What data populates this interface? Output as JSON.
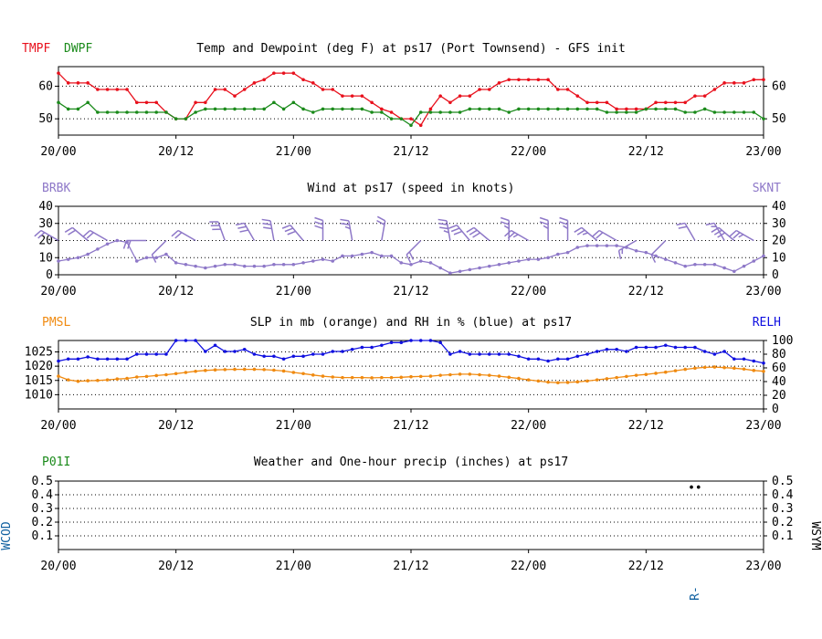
{
  "colors": {
    "temp": "#e8101c",
    "dew": "#1a8a1a",
    "wind": "#8e78c8",
    "slp": "#f08a10",
    "rh": "#1010e0",
    "precip_label": "#1a8a1a",
    "side_label": "#1060a0",
    "axis": "#000000"
  },
  "x_ticks": [
    "20/00",
    "20/12",
    "21/00",
    "21/12",
    "22/00",
    "22/12",
    "23/00"
  ],
  "chart_data": [
    {
      "id": "temp",
      "type": "line",
      "title": "Temp and Dewpoint (deg F) at ps17  (Port Townsend) - GFS init",
      "left_labels": [
        "TMPF",
        "DWPF"
      ],
      "ylim": [
        45,
        66
      ],
      "y_ticks": [
        50,
        60
      ],
      "right_ticks": [
        50,
        60
      ],
      "x_range": [
        0,
        72
      ],
      "series": [
        {
          "name": "TMPF",
          "color_key": "temp",
          "values": [
            64,
            61,
            61,
            61,
            59,
            59,
            59,
            59,
            55,
            55,
            55,
            52,
            50,
            50,
            55,
            55,
            59,
            59,
            57,
            59,
            61,
            62,
            64,
            64,
            64,
            62,
            61,
            59,
            59,
            57,
            57,
            57,
            55,
            53,
            52,
            50,
            50,
            48,
            53,
            57,
            55,
            57,
            57,
            59,
            59,
            61,
            62,
            62,
            62,
            62,
            62,
            59,
            59,
            57,
            55,
            55,
            55,
            53,
            53,
            53,
            53,
            55,
            55,
            55,
            55,
            57,
            57,
            59,
            61,
            61,
            61,
            62,
            62
          ]
        },
        {
          "name": "DWPF",
          "color_key": "dew",
          "values": [
            55,
            53,
            53,
            55,
            52,
            52,
            52,
            52,
            52,
            52,
            52,
            52,
            50,
            50,
            52,
            53,
            53,
            53,
            53,
            53,
            53,
            53,
            55,
            53,
            55,
            53,
            52,
            53,
            53,
            53,
            53,
            53,
            52,
            52,
            50,
            50,
            48,
            52,
            52,
            52,
            52,
            52,
            53,
            53,
            53,
            53,
            52,
            53,
            53,
            53,
            53,
            53,
            53,
            53,
            53,
            53,
            52,
            52,
            52,
            52,
            53,
            53,
            53,
            53,
            52,
            52,
            53,
            52,
            52,
            52,
            52,
            52,
            50
          ]
        }
      ]
    },
    {
      "id": "wind",
      "type": "line",
      "title": "Wind at  ps17  (speed in knots)",
      "left_labels": [
        "BRBK"
      ],
      "right_labels": [
        "SKNT"
      ],
      "ylim": [
        0,
        40
      ],
      "y_ticks": [
        0,
        10,
        20,
        30,
        40
      ],
      "right_ticks": [
        0,
        10,
        20,
        30,
        40
      ],
      "x_range": [
        0,
        72
      ],
      "series": [
        {
          "name": "SKNT",
          "color_key": "wind",
          "values": [
            8,
            9,
            10,
            12,
            15,
            18,
            20,
            19,
            8,
            10,
            10,
            12,
            7,
            6,
            5,
            4,
            5,
            6,
            6,
            5,
            5,
            5,
            6,
            6,
            6,
            7,
            8,
            9,
            8,
            11,
            11,
            12,
            13,
            11,
            11,
            7,
            6,
            8,
            7,
            4,
            1,
            2,
            3,
            4,
            5,
            6,
            7,
            8,
            9,
            9,
            10,
            12,
            13,
            16,
            17,
            17,
            17,
            17,
            16,
            14,
            13,
            11,
            9,
            7,
            5,
            6,
            6,
            6,
            4,
            2,
            5,
            8,
            11
          ]
        }
      ],
      "barbs": [
        {
          "t": 0,
          "speed": 20,
          "dir": 300
        },
        {
          "t": 3,
          "speed": 20,
          "dir": 310
        },
        {
          "t": 5,
          "speed": 20,
          "dir": 300
        },
        {
          "t": 9,
          "speed": 20,
          "dir": 270
        },
        {
          "t": 11,
          "speed": 10,
          "dir": 225
        },
        {
          "t": 14,
          "speed": 20,
          "dir": 300
        },
        {
          "t": 17,
          "speed": 30,
          "dir": 340
        },
        {
          "t": 20,
          "speed": 30,
          "dir": 330
        },
        {
          "t": 22,
          "speed": 30,
          "dir": 350
        },
        {
          "t": 25,
          "speed": 30,
          "dir": 320
        },
        {
          "t": 27,
          "speed": 30,
          "dir": 0
        },
        {
          "t": 30,
          "speed": 25,
          "dir": 350
        },
        {
          "t": 33,
          "speed": 20,
          "dir": 10
        },
        {
          "t": 37,
          "speed": 20,
          "dir": 225
        },
        {
          "t": 40,
          "speed": 35,
          "dir": 350
        },
        {
          "t": 42,
          "speed": 30,
          "dir": 320
        },
        {
          "t": 44,
          "speed": 30,
          "dir": 310
        },
        {
          "t": 46,
          "speed": 25,
          "dir": 0
        },
        {
          "t": 48,
          "speed": 25,
          "dir": 300
        },
        {
          "t": 50,
          "speed": 25,
          "dir": 0
        },
        {
          "t": 52,
          "speed": 25,
          "dir": 0
        },
        {
          "t": 55,
          "speed": 25,
          "dir": 310
        },
        {
          "t": 57,
          "speed": 20,
          "dir": 300
        },
        {
          "t": 59,
          "speed": 15,
          "dir": 240
        },
        {
          "t": 62,
          "speed": 10,
          "dir": 225
        },
        {
          "t": 65,
          "speed": 20,
          "dir": 330
        },
        {
          "t": 68,
          "speed": 15,
          "dir": 330
        },
        {
          "t": 69,
          "speed": 30,
          "dir": 310
        },
        {
          "t": 71,
          "speed": 25,
          "dir": 300
        }
      ]
    },
    {
      "id": "slp",
      "type": "line",
      "title": "SLP in mb (orange) and RH in % (blue) at  ps17",
      "left_labels": [
        "PMSL"
      ],
      "right_labels": [
        "RELH"
      ],
      "ylim": [
        1005,
        1029
      ],
      "y_ticks": [
        1010,
        1015,
        1020,
        1025
      ],
      "right_ticks": [
        0,
        20,
        40,
        60,
        80,
        100
      ],
      "right_ylim": [
        0,
        100
      ],
      "x_range": [
        0,
        72
      ],
      "series": [
        {
          "name": "PMSL",
          "color_key": "slp",
          "axis": "left",
          "values": [
            1016.5,
            1015.2,
            1014.7,
            1014.9,
            1015,
            1015.2,
            1015.5,
            1015.7,
            1016.2,
            1016.4,
            1016.7,
            1017,
            1017.4,
            1017.8,
            1018.2,
            1018.5,
            1018.7,
            1018.8,
            1018.9,
            1018.9,
            1018.9,
            1018.8,
            1018.6,
            1018.3,
            1017.8,
            1017.4,
            1016.9,
            1016.5,
            1016.2,
            1016,
            1016,
            1016,
            1015.9,
            1016,
            1016,
            1016.1,
            1016.3,
            1016.4,
            1016.5,
            1016.8,
            1017,
            1017.2,
            1017.2,
            1017,
            1016.8,
            1016.5,
            1016.1,
            1015.7,
            1015.2,
            1014.8,
            1014.4,
            1014.2,
            1014.3,
            1014.5,
            1014.8,
            1015.2,
            1015.6,
            1016,
            1016.4,
            1016.8,
            1017.1,
            1017.5,
            1017.9,
            1018.4,
            1018.9,
            1019.3,
            1019.6,
            1019.7,
            1019.5,
            1019.3,
            1019,
            1018.5,
            1018.2
          ]
        },
        {
          "name": "RELH",
          "color_key": "rh",
          "axis": "right",
          "values": [
            70,
            73,
            73,
            76,
            73,
            73,
            73,
            73,
            80,
            80,
            80,
            80,
            100,
            100,
            100,
            84,
            93,
            84,
            84,
            87,
            80,
            77,
            77,
            73,
            77,
            77,
            80,
            80,
            84,
            84,
            87,
            90,
            90,
            93,
            97,
            97,
            100,
            100,
            100,
            97,
            80,
            84,
            80,
            80,
            80,
            80,
            80,
            77,
            73,
            73,
            70,
            73,
            73,
            77,
            80,
            84,
            87,
            87,
            84,
            90,
            90,
            90,
            93,
            90,
            90,
            90,
            84,
            80,
            84,
            73,
            73,
            70,
            67
          ]
        }
      ]
    },
    {
      "id": "precip",
      "type": "line",
      "title": "Weather and One-hour precip (inches) at  ps17",
      "left_labels": [
        "P01I"
      ],
      "side_left_label": "WCOD",
      "side_right_label": "WSYM",
      "ylim": [
        0,
        0.5
      ],
      "y_ticks": [
        0.1,
        0.2,
        0.3,
        0.4,
        0.5
      ],
      "right_ticks": [
        0.1,
        0.2,
        0.3,
        0.4,
        0.5
      ],
      "x_range": [
        0,
        72
      ],
      "series": [],
      "weather_codes": [
        {
          "t": 65,
          "code": "R-"
        }
      ],
      "weather_symbols": [
        {
          "t": 65,
          "symbol": "••"
        }
      ]
    }
  ]
}
